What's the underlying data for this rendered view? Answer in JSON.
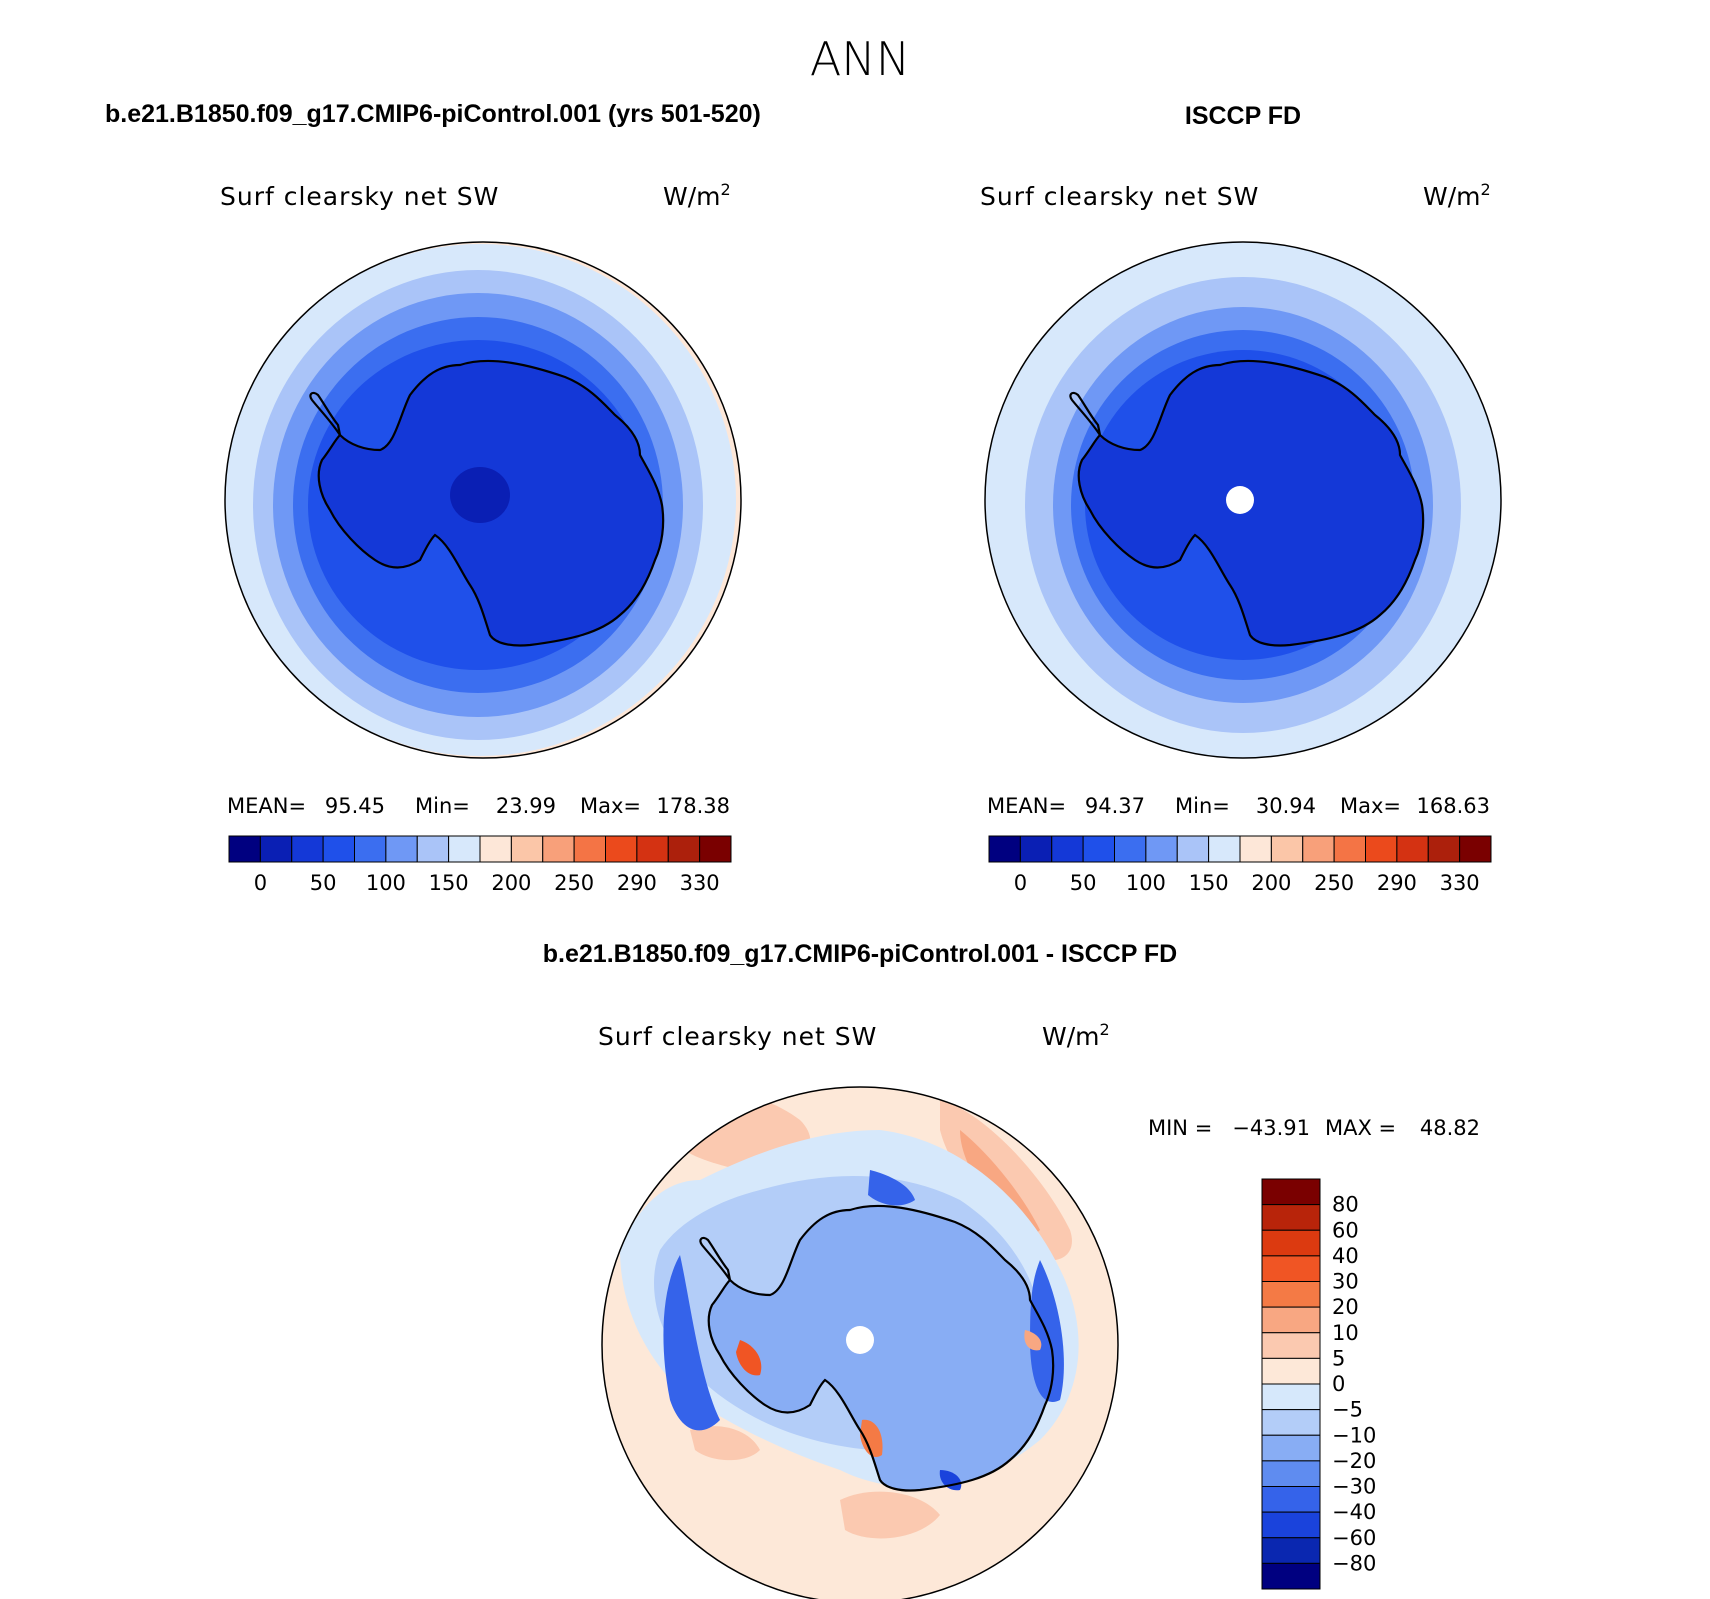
{
  "figure": {
    "season": "ANN"
  },
  "panels": [
    {
      "id": "model",
      "case_title": "b.e21.B1850.f09_g17.CMIP6-piControl.001 (yrs 501-520)",
      "variable": "Surf clearsky net SW",
      "units": "W/m",
      "units_sup": "2",
      "stats": {
        "mean_label": "MEAN=",
        "mean": "95.45",
        "min_label": "Min=",
        "min": "23.99",
        "max_label": "Max=",
        "max": "178.38"
      },
      "colorbar": {
        "colors": [
          "#000080",
          "#0a1fb4",
          "#1438d7",
          "#1f50ea",
          "#3b6ef0",
          "#6f98f5",
          "#aac4f8",
          "#d7e8fb",
          "#fde7d8",
          "#fbc6a8",
          "#f8a07a",
          "#f47445",
          "#eb4a1c",
          "#d43212",
          "#ac200c",
          "#7a0000"
        ],
        "tick_labels": [
          "0",
          "50",
          "100",
          "150",
          "200",
          "250",
          "290",
          "330"
        ]
      }
    },
    {
      "id": "obs",
      "case_title": "ISCCP FD",
      "variable": "Surf clearsky net SW",
      "units": "W/m",
      "units_sup": "2",
      "stats": {
        "mean_label": "MEAN=",
        "mean": "94.37",
        "min_label": "Min=",
        "min": "30.94",
        "max_label": "Max=",
        "max": "168.63"
      },
      "colorbar": {
        "colors": [
          "#000080",
          "#0a1fb4",
          "#1438d7",
          "#1f50ea",
          "#3b6ef0",
          "#6f98f5",
          "#aac4f8",
          "#d7e8fb",
          "#fde7d8",
          "#fbc6a8",
          "#f8a07a",
          "#f47445",
          "#eb4a1c",
          "#d43212",
          "#ac200c",
          "#7a0000"
        ],
        "tick_labels": [
          "0",
          "50",
          "100",
          "150",
          "200",
          "250",
          "290",
          "330"
        ]
      }
    },
    {
      "id": "diff",
      "case_title": "b.e21.B1850.f09_g17.CMIP6-piControl.001 - ISCCP FD",
      "variable": "Surf clearsky net SW",
      "units": "W/m",
      "units_sup": "2",
      "stats": {
        "min_label": "MIN =",
        "min": "−43.91",
        "max_label": "MAX =",
        "max": "48.82"
      },
      "colorbar": {
        "colors": [
          "#7a0000",
          "#b8240a",
          "#dc3a10",
          "#f05524",
          "#f47a45",
          "#f8a782",
          "#fbc9b0",
          "#fde8d8",
          "#d6e8fb",
          "#b3cdf8",
          "#88adf4",
          "#5f8cf0",
          "#3563ea",
          "#1a43dc",
          "#0a27b0",
          "#000080"
        ],
        "tick_labels": [
          "80",
          "60",
          "40",
          "30",
          "20",
          "10",
          "5",
          "0",
          "−5",
          "−10",
          "−20",
          "−30",
          "−40",
          "−60",
          "−80"
        ]
      }
    }
  ]
}
